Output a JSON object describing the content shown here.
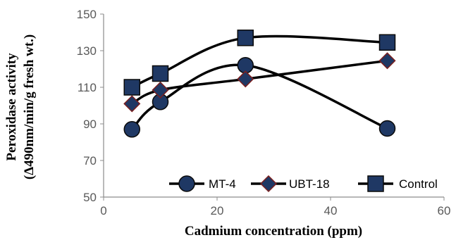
{
  "chart_data": {
    "type": "line",
    "title": "",
    "xlabel": "Cadmium concentration (ppm)",
    "ylabel_line1": "Peroxidase activity",
    "ylabel_line2": "(Δ490nm/min/g fresh wt.)",
    "xlim": [
      0,
      60
    ],
    "ylim": [
      50,
      150
    ],
    "xticks": [
      "0",
      "20",
      "40",
      "60"
    ],
    "yticks": [
      "50",
      "70",
      "90",
      "110",
      "130",
      "150"
    ],
    "grid": false,
    "legend_position": "bottom-right",
    "smooth": true,
    "x": [
      5,
      10,
      25,
      50
    ],
    "series": [
      {
        "name": "MT-4",
        "marker": "circle",
        "values": [
          87,
          102,
          122,
          87.5
        ]
      },
      {
        "name": "UBT-18",
        "marker": "diamond",
        "values": [
          101,
          108.5,
          114.5,
          124.5
        ]
      },
      {
        "name": "Control",
        "marker": "square",
        "values": [
          110,
          117.5,
          137,
          134.5
        ]
      }
    ]
  },
  "colors": {
    "marker_fill": "#1f3864",
    "marker_stroke": "#0a0a0a",
    "line": "#000000",
    "axis": "#8c8c8c",
    "diamond_stroke": "#7a1f1f"
  }
}
